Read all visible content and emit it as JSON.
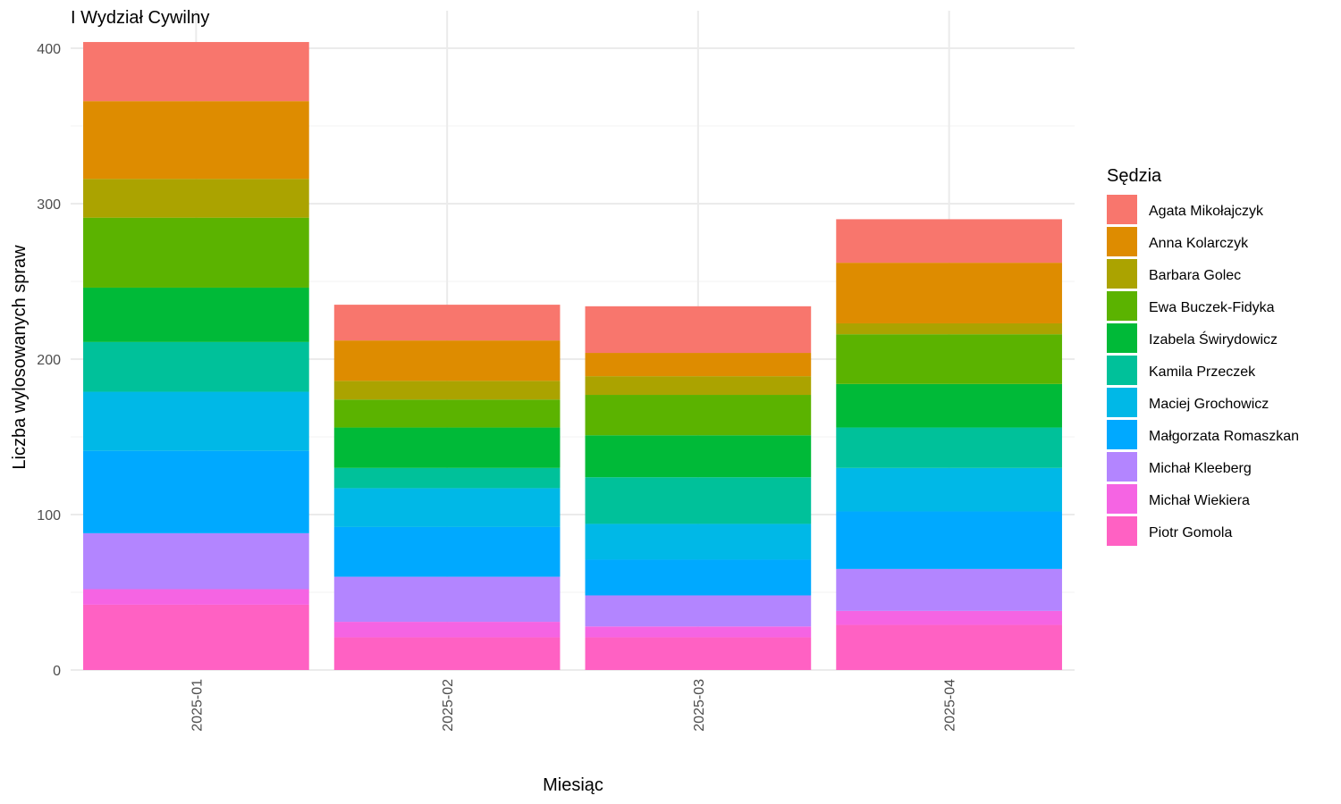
{
  "chart_data": {
    "type": "bar",
    "stacked": true,
    "title": "I Wydział Cywilny",
    "xlabel": "Miesiąc",
    "ylabel": "Liczba wylosowanych spraw",
    "ylim": [
      0,
      415
    ],
    "yticks": [
      0,
      100,
      200,
      300,
      400
    ],
    "grid": true,
    "legend_title": "Sędzia",
    "legend_position": "right",
    "categories": [
      "2025-01",
      "2025-02",
      "2025-03",
      "2025-04"
    ],
    "series": [
      {
        "name": "Piotr Gomola",
        "color": "#FF61C3",
        "values": [
          42,
          21,
          21,
          29
        ]
      },
      {
        "name": "Michał Wiekiera",
        "color": "#F564E3",
        "values": [
          10,
          10,
          7,
          9
        ]
      },
      {
        "name": "Michał Kleeberg",
        "color": "#B385FF",
        "values": [
          36,
          29,
          20,
          27
        ]
      },
      {
        "name": "Małgorzata Romaszkan",
        "color": "#00A9FF",
        "values": [
          53,
          32,
          23,
          37
        ]
      },
      {
        "name": "Maciej Grochowicz",
        "color": "#00B8E7",
        "values": [
          38,
          25,
          23,
          28
        ]
      },
      {
        "name": "Kamila Przeczek",
        "color": "#00C19A",
        "values": [
          32,
          13,
          30,
          26
        ]
      },
      {
        "name": "Izabela Świrydowicz",
        "color": "#00BA38",
        "values": [
          35,
          26,
          27,
          28
        ]
      },
      {
        "name": "Ewa Buczek-Fidyka",
        "color": "#5BB300",
        "values": [
          45,
          18,
          26,
          32
        ]
      },
      {
        "name": "Barbara Golec",
        "color": "#ABA300",
        "values": [
          25,
          12,
          12,
          7
        ]
      },
      {
        "name": "Anna Kolarczyk",
        "color": "#DE8C00",
        "values": [
          50,
          26,
          15,
          39
        ]
      },
      {
        "name": "Agata Mikołajczyk",
        "color": "#F8766D",
        "values": [
          38,
          23,
          30,
          28
        ]
      }
    ]
  }
}
